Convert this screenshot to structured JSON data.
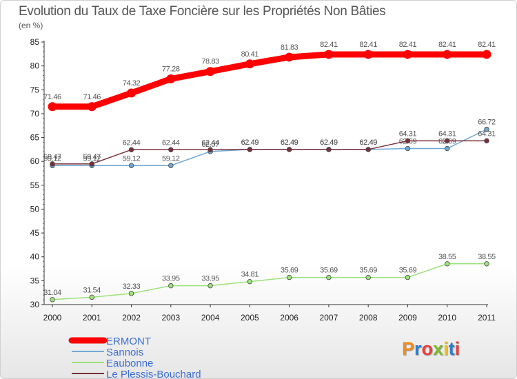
{
  "header": {
    "title": "Evolution du Taux de Taxe Foncière sur les Propriétés Non Bâties",
    "unit": "(en %)"
  },
  "logo": {
    "text": "Proxiti",
    "letter_colors": [
      "#f08c1e",
      "#2a7fd4",
      "#e8403a",
      "#7dbb2a",
      "#f0c020",
      "#2a7fd4",
      "#e8403a"
    ]
  },
  "chart_data": {
    "type": "line",
    "title": "Evolution du Taux de Taxe Foncière sur les Propriétés Non Bâties",
    "ylabel": "(en %)",
    "xlabel": "",
    "x": [
      "2000",
      "2001",
      "2002",
      "2003",
      "2004",
      "2005",
      "2006",
      "2007",
      "2008",
      "2009",
      "2010",
      "2011"
    ],
    "ylim": [
      30,
      85
    ],
    "yticks": [
      30,
      35,
      40,
      45,
      50,
      55,
      60,
      65,
      70,
      75,
      80,
      85
    ],
    "legend_position": "bottom-left",
    "grid": false,
    "series": [
      {
        "name": "ERMONT",
        "color": "#ff0000",
        "values": [
          71.46,
          71.46,
          74.32,
          77.28,
          78.83,
          80.41,
          81.83,
          82.41,
          82.41,
          82.41,
          82.41,
          82.41
        ],
        "labels": [
          "71.46",
          "71.46",
          "74.32",
          "77.28",
          "78.83",
          "80.41",
          "81.83",
          "82.41",
          "82.41",
          "82.41",
          "82.41",
          "82.41"
        ]
      },
      {
        "name": "Sannois",
        "color": "#6fa8d6",
        "values": [
          59.12,
          59.12,
          59.12,
          59.12,
          62.07,
          62.49,
          62.49,
          62.49,
          62.49,
          62.69,
          62.69,
          66.72
        ],
        "labels": [
          "59.12",
          "59.12",
          "59.12",
          "59.12",
          "62.07",
          "62.49",
          "62.49",
          "62.49",
          "62.49",
          "62.69",
          "62.69",
          "66.72"
        ]
      },
      {
        "name": "Eaubonne",
        "color": "#9be37a",
        "values": [
          31.04,
          31.54,
          32.33,
          33.95,
          33.95,
          34.81,
          35.69,
          35.69,
          35.69,
          35.69,
          38.55,
          38.55
        ],
        "labels": [
          "31.04",
          "31.54",
          "32.33",
          "33.95",
          "33.95",
          "34.81",
          "35.69",
          "35.69",
          "35.69",
          "35.69",
          "38.55",
          "38.55"
        ]
      },
      {
        "name": "Le Plessis-Bouchard",
        "color": "#7a2f3a",
        "values": [
          59.47,
          59.47,
          62.44,
          62.44,
          62.44,
          62.49,
          62.49,
          62.49,
          62.49,
          64.31,
          64.31,
          64.31
        ],
        "labels": [
          "59.47",
          "59.47",
          "62.44",
          "62.44",
          "62.44",
          "62.49",
          "62.49",
          "62.49",
          "62.49",
          "64.31",
          "64.31",
          "64.31"
        ]
      }
    ]
  }
}
